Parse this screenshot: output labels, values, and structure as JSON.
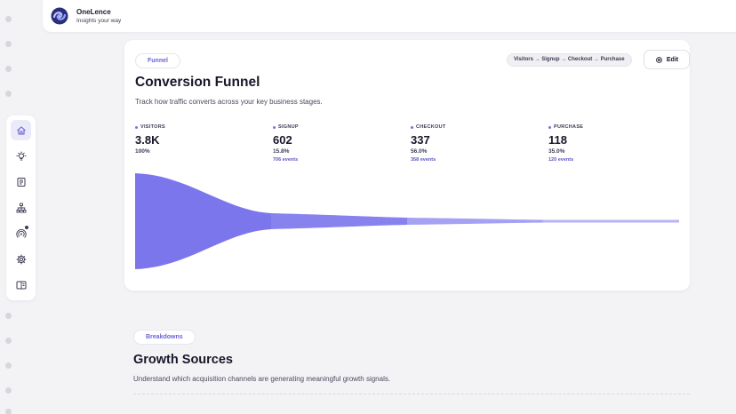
{
  "header": {
    "brand_name": "OneLence",
    "brand_tagline": "Insights your way"
  },
  "sidebar": {
    "items": [
      {
        "icon": "home-icon",
        "active": true
      },
      {
        "icon": "lightbulb-icon",
        "active": false
      },
      {
        "icon": "document-icon",
        "active": false
      },
      {
        "icon": "hierarchy-icon",
        "active": false
      },
      {
        "icon": "broadcast-icon",
        "active": false,
        "badge": true
      },
      {
        "icon": "gear-icon",
        "active": false
      },
      {
        "icon": "panel-icon",
        "active": false
      }
    ]
  },
  "funnel": {
    "pill": "Funnel",
    "title": "Conversion Funnel",
    "subtitle": "Track how traffic converts across your key business stages.",
    "path": "Visitors → Signup → Checkout → Purchase",
    "edit_label": "Edit",
    "stages": [
      {
        "label": "VISITORS",
        "value": "3.8K",
        "pct": "100%",
        "events": ""
      },
      {
        "label": "SIGNUP",
        "value": "602",
        "pct": "15.8%",
        "events": "706 events"
      },
      {
        "label": "CHECKOUT",
        "value": "337",
        "pct": "56.0%",
        "events": "358 events"
      },
      {
        "label": "PURCHASE",
        "value": "118",
        "pct": "35.0%",
        "events": "120 events"
      }
    ],
    "accent_color": "#7b76ec"
  },
  "growth": {
    "pill": "Breakdowns",
    "title": "Growth Sources",
    "subtitle": "Understand which acquisition channels are generating meaningful growth signals."
  }
}
